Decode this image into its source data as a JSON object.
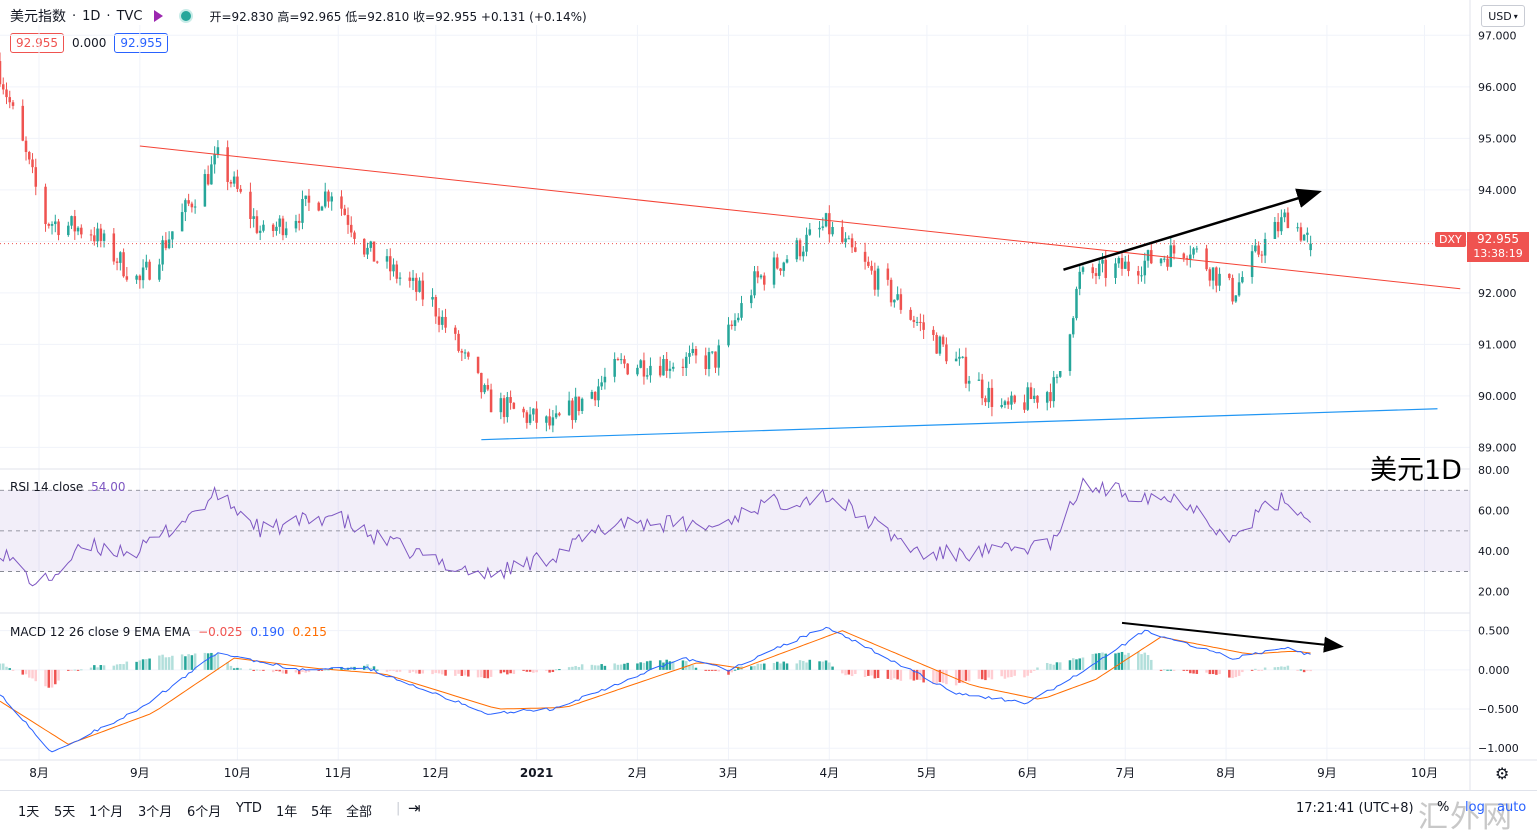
{
  "header": {
    "symbol": "美元指数",
    "interval": "1D",
    "exchange": "TVC",
    "sep": "·",
    "ohlc_text": "开=92.830 高=92.965 低=92.810 收=92.955 +0.131 (+0.14%)"
  },
  "indicator_values": {
    "v1": "92.955",
    "v2": "0.000",
    "v3": "92.955"
  },
  "currency_button": "USD",
  "price_axis": {
    "ticks": [
      "97.000",
      "96.000",
      "95.000",
      "94.000",
      "93.000",
      "92.000",
      "91.000",
      "90.000",
      "89.000"
    ]
  },
  "last_price": {
    "symbol": "DXY",
    "price": "92.955",
    "countdown": "13:38:19"
  },
  "annotation": "美元1D",
  "rsi": {
    "label": "RSI 14 close",
    "value": "54.00",
    "ticks": [
      "80.00",
      "60.00",
      "40.00",
      "20.00"
    ]
  },
  "macd": {
    "label": "MACD 12 26 close 9 EMA EMA",
    "hist": "−0.025",
    "macd_val": "0.190",
    "signal_val": "0.215",
    "ticks": [
      "0.500",
      "0.000",
      "−0.500",
      "−1.000"
    ]
  },
  "time_axis": [
    "8月",
    "9月",
    "10月",
    "11月",
    "12月",
    "2021",
    "2月",
    "3月",
    "4月",
    "5月",
    "6月",
    "7月",
    "8月",
    "9月",
    "10月"
  ],
  "range_buttons": [
    "1天",
    "5天",
    "1个月",
    "3个月",
    "6个月",
    "YTD",
    "1年",
    "5年",
    "全部"
  ],
  "clock": "17:21:41 (UTC+8)",
  "scale_buttons": {
    "percent": "%",
    "log": "log",
    "auto": "auto"
  },
  "watermark": "汇外网",
  "colors": {
    "up": "#26a69a",
    "down": "#ef5350",
    "macd": "#2962ff",
    "signal": "#ff6d00",
    "rsi": "#7e57c2",
    "trend": "#f44336",
    "support": "#2196f3"
  },
  "chart_data": [
    {
      "type": "candlestick",
      "title": "美元指数 1D",
      "x_range": [
        "2020-07-20",
        "2021-10-15"
      ],
      "ylim": [
        88.6,
        97.2
      ],
      "anchor_closes": [
        [
          "2020-07-20",
          96.3
        ],
        [
          "2020-08-03",
          93.4
        ],
        [
          "2020-08-17",
          93.2
        ],
        [
          "2020-09-01",
          92.2
        ],
        [
          "2020-09-25",
          94.6
        ],
        [
          "2020-10-09",
          93.1
        ],
        [
          "2020-10-30",
          94.0
        ],
        [
          "2020-11-10",
          92.8
        ],
        [
          "2020-11-30",
          91.8
        ],
        [
          "2020-12-17",
          89.9
        ],
        [
          "2021-01-06",
          89.4
        ],
        [
          "2021-01-27",
          90.6
        ],
        [
          "2021-02-25",
          90.7
        ],
        [
          "2021-03-09",
          92.2
        ],
        [
          "2021-03-31",
          93.3
        ],
        [
          "2021-04-30",
          91.3
        ],
        [
          "2021-05-25",
          89.7
        ],
        [
          "2021-06-10",
          90.2
        ],
        [
          "2021-06-17",
          92.3
        ],
        [
          "2021-07-07",
          92.6
        ],
        [
          "2021-07-21",
          92.9
        ],
        [
          "2021-08-03",
          92.0
        ],
        [
          "2021-08-12",
          92.9
        ],
        [
          "2021-08-20",
          93.5
        ],
        [
          "2021-08-27",
          92.955
        ]
      ],
      "trendlines": [
        {
          "name": "resistance",
          "from": [
            "2020-09-01",
            94.85
          ],
          "to": [
            "2021-10-12",
            92.08
          ]
        },
        {
          "name": "support",
          "from": [
            "2020-12-15",
            89.15
          ],
          "to": [
            "2021-10-05",
            89.75
          ]
        },
        {
          "name": "arrow-up",
          "from": [
            "2021-06-12",
            92.45
          ],
          "to": [
            "2021-08-29",
            93.95
          ]
        }
      ]
    },
    {
      "type": "line",
      "title": "RSI 14 close",
      "ylim": [
        10,
        80
      ],
      "bands": [
        30,
        50,
        70
      ],
      "anchors": [
        [
          "2020-07-20",
          41
        ],
        [
          "2020-08-01",
          22
        ],
        [
          "2020-08-15",
          42
        ],
        [
          "2020-09-01",
          40
        ],
        [
          "2020-09-25",
          68
        ],
        [
          "2020-10-09",
          50
        ],
        [
          "2020-10-30",
          58
        ],
        [
          "2020-11-10",
          48
        ],
        [
          "2020-11-30",
          36
        ],
        [
          "2020-12-17",
          28
        ],
        [
          "2021-01-06",
          38
        ],
        [
          "2021-01-27",
          55
        ],
        [
          "2021-02-25",
          52
        ],
        [
          "2021-03-09",
          62
        ],
        [
          "2021-03-31",
          68
        ],
        [
          "2021-04-30",
          38
        ],
        [
          "2021-05-25",
          40
        ],
        [
          "2021-06-10",
          45
        ],
        [
          "2021-06-17",
          72
        ],
        [
          "2021-07-07",
          68
        ],
        [
          "2021-07-21",
          64
        ],
        [
          "2021-08-03",
          45
        ],
        [
          "2021-08-12",
          60
        ],
        [
          "2021-08-20",
          66
        ],
        [
          "2021-08-27",
          54
        ]
      ]
    },
    {
      "type": "line",
      "title": "MACD 12 26 close 9 EMA EMA",
      "ylim": [
        -1.15,
        0.7
      ],
      "macd_anchors": [
        [
          "2020-07-20",
          -0.3
        ],
        [
          "2020-08-05",
          -1.05
        ],
        [
          "2020-09-01",
          -0.5
        ],
        [
          "2020-09-25",
          0.22
        ],
        [
          "2020-10-20",
          0.0
        ],
        [
          "2020-11-10",
          0.02
        ],
        [
          "2020-12-17",
          -0.55
        ],
        [
          "2021-01-06",
          -0.5
        ],
        [
          "2021-02-15",
          0.15
        ],
        [
          "2021-03-01",
          0.0
        ],
        [
          "2021-03-31",
          0.55
        ],
        [
          "2021-05-10",
          -0.3
        ],
        [
          "2021-06-01",
          -0.42
        ],
        [
          "2021-06-17",
          -0.05
        ],
        [
          "2021-07-07",
          0.5
        ],
        [
          "2021-08-03",
          0.15
        ],
        [
          "2021-08-20",
          0.28
        ],
        [
          "2021-08-27",
          0.19
        ]
      ],
      "signal_anchors": [
        [
          "2020-07-20",
          -0.4
        ],
        [
          "2020-08-10",
          -0.95
        ],
        [
          "2020-09-05",
          -0.55
        ],
        [
          "2020-09-30",
          0.15
        ],
        [
          "2020-10-25",
          0.02
        ],
        [
          "2020-11-15",
          -0.05
        ],
        [
          "2020-12-20",
          -0.5
        ],
        [
          "2021-01-10",
          -0.48
        ],
        [
          "2021-02-20",
          0.1
        ],
        [
          "2021-03-05",
          0.02
        ],
        [
          "2021-04-05",
          0.5
        ],
        [
          "2021-05-15",
          -0.2
        ],
        [
          "2021-06-05",
          -0.38
        ],
        [
          "2021-06-22",
          -0.12
        ],
        [
          "2021-07-12",
          0.42
        ],
        [
          "2021-08-08",
          0.2
        ],
        [
          "2021-08-22",
          0.24
        ],
        [
          "2021-08-27",
          0.215
        ]
      ],
      "arrow": {
        "from": [
          "2021-06-30",
          0.6
        ],
        "to": [
          "2021-09-05",
          0.3
        ]
      }
    }
  ]
}
